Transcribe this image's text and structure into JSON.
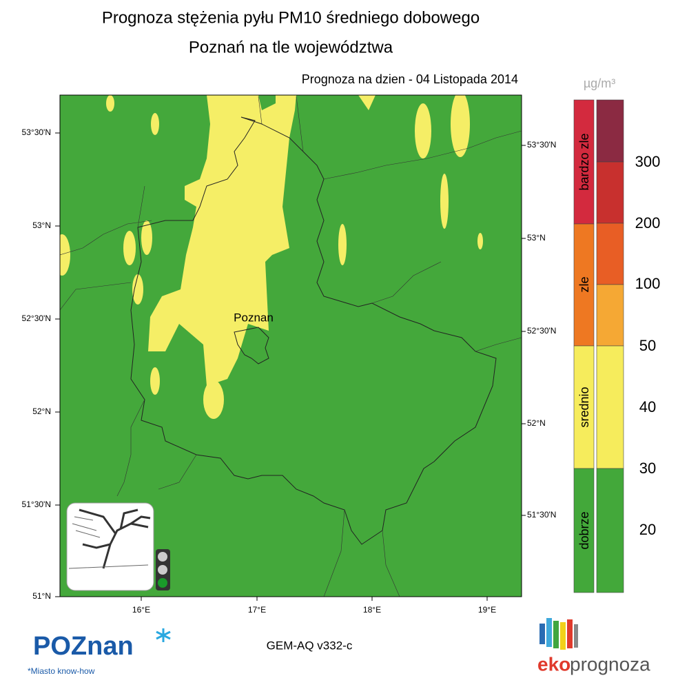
{
  "header": {
    "title": "Prognoza stężenia pyłu PM10 średniego dobowego",
    "subtitle": "Poznań na tle województwa",
    "date_label": "Prognoza na dzien -  04 Listopada 2014"
  },
  "map": {
    "city_label": "Poznan",
    "left_lat_labels": [
      "53°30'N",
      "53°N",
      "52°30'N",
      "52°N",
      "51°30'N",
      "51°N"
    ],
    "right_lat_labels": [
      "53°30'N",
      "53°N",
      "52°30'N",
      "52°N",
      "51°30'N"
    ],
    "lon_labels": [
      "16°E",
      "17°E",
      "18°E",
      "19°E"
    ]
  },
  "legend": {
    "unit": "µg/m³",
    "categories": [
      "bardzo zle",
      "zle",
      "srednio",
      "dobrze"
    ],
    "thresholds": [
      300,
      200,
      100,
      50,
      40,
      30,
      20
    ]
  },
  "footer": {
    "model": "GEM-AQ v332-c",
    "logo_left": "POZnan",
    "logo_left_tagline": "*Miasto know-how",
    "logo_right_a": "eko",
    "logo_right_b": "prognoza"
  }
}
